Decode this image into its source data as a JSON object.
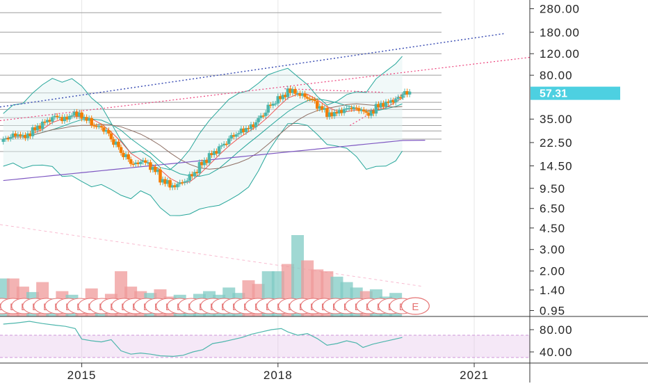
{
  "chart_data": [
    {
      "type": "candlestick",
      "scale": "log",
      "x_ticks": [
        "2015",
        "2018",
        "2021"
      ],
      "y_ticks": [
        "280.00",
        "180.00",
        "120.00",
        "80.00",
        "35.00",
        "22.50",
        "14.50",
        "9.50",
        "6.50",
        "4.50",
        "3.00",
        "2.00",
        "1.40",
        "0.95"
      ],
      "ylim": [
        0.85,
        330
      ],
      "xlim": [
        2013.75,
        2021.85
      ],
      "last_price": "57.31",
      "last_price_color": "#4dd0e1",
      "up_color": "#4db6ac",
      "down_color": "#f57c00",
      "weekly_closes": [
        {
          "t": 2013.8,
          "v": 24
        },
        {
          "t": 2013.95,
          "v": 26
        },
        {
          "t": 2014.1,
          "v": 25
        },
        {
          "t": 2014.25,
          "v": 29
        },
        {
          "t": 2014.4,
          "v": 33
        },
        {
          "t": 2014.55,
          "v": 37
        },
        {
          "t": 2014.7,
          "v": 35
        },
        {
          "t": 2014.85,
          "v": 39
        },
        {
          "t": 2015.0,
          "v": 36
        },
        {
          "t": 2015.15,
          "v": 31
        },
        {
          "t": 2015.3,
          "v": 29
        },
        {
          "t": 2015.45,
          "v": 23
        },
        {
          "t": 2015.6,
          "v": 18
        },
        {
          "t": 2015.75,
          "v": 15
        },
        {
          "t": 2015.9,
          "v": 16
        },
        {
          "t": 2016.05,
          "v": 14
        },
        {
          "t": 2016.2,
          "v": 11
        },
        {
          "t": 2016.35,
          "v": 9.8
        },
        {
          "t": 2016.5,
          "v": 10.5
        },
        {
          "t": 2016.65,
          "v": 12
        },
        {
          "t": 2016.8,
          "v": 15
        },
        {
          "t": 2016.95,
          "v": 18
        },
        {
          "t": 2017.1,
          "v": 21
        },
        {
          "t": 2017.25,
          "v": 25
        },
        {
          "t": 2017.4,
          "v": 28
        },
        {
          "t": 2017.55,
          "v": 30
        },
        {
          "t": 2017.7,
          "v": 36
        },
        {
          "t": 2017.85,
          "v": 45
        },
        {
          "t": 2018.0,
          "v": 52
        },
        {
          "t": 2018.15,
          "v": 60
        },
        {
          "t": 2018.3,
          "v": 56
        },
        {
          "t": 2018.45,
          "v": 52
        },
        {
          "t": 2018.6,
          "v": 44
        },
        {
          "t": 2018.75,
          "v": 38
        },
        {
          "t": 2018.9,
          "v": 40
        },
        {
          "t": 2019.05,
          "v": 43
        },
        {
          "t": 2019.2,
          "v": 42
        },
        {
          "t": 2019.35,
          "v": 38
        },
        {
          "t": 2019.5,
          "v": 45
        },
        {
          "t": 2019.65,
          "v": 48
        },
        {
          "t": 2019.8,
          "v": 52
        },
        {
          "t": 2019.9,
          "v": 57.31
        }
      ],
      "volume": [
        {
          "t": 2013.8,
          "v": 0.42,
          "dir": "up"
        },
        {
          "t": 2013.95,
          "v": 0.42,
          "dir": "down"
        },
        {
          "t": 2014.1,
          "v": 0.33,
          "dir": "down"
        },
        {
          "t": 2014.25,
          "v": 0.27,
          "dir": "up"
        },
        {
          "t": 2014.4,
          "v": 0.38,
          "dir": "down"
        },
        {
          "t": 2014.55,
          "v": 0.2,
          "dir": "up"
        },
        {
          "t": 2014.7,
          "v": 0.28,
          "dir": "down"
        },
        {
          "t": 2014.85,
          "v": 0.24,
          "dir": "up"
        },
        {
          "t": 2015.0,
          "v": 0.2,
          "dir": "down"
        },
        {
          "t": 2015.15,
          "v": 0.31,
          "dir": "down"
        },
        {
          "t": 2015.3,
          "v": 0.18,
          "dir": "up"
        },
        {
          "t": 2015.45,
          "v": 0.25,
          "dir": "down"
        },
        {
          "t": 2015.6,
          "v": 0.5,
          "dir": "down"
        },
        {
          "t": 2015.75,
          "v": 0.33,
          "dir": "down"
        },
        {
          "t": 2015.9,
          "v": 0.28,
          "dir": "down"
        },
        {
          "t": 2016.05,
          "v": 0.26,
          "dir": "up"
        },
        {
          "t": 2016.2,
          "v": 0.3,
          "dir": "down"
        },
        {
          "t": 2016.35,
          "v": 0.22,
          "dir": "down"
        },
        {
          "t": 2016.5,
          "v": 0.24,
          "dir": "up"
        },
        {
          "t": 2016.65,
          "v": 0.2,
          "dir": "up"
        },
        {
          "t": 2016.8,
          "v": 0.25,
          "dir": "up"
        },
        {
          "t": 2016.95,
          "v": 0.28,
          "dir": "up"
        },
        {
          "t": 2017.1,
          "v": 0.24,
          "dir": "up"
        },
        {
          "t": 2017.25,
          "v": 0.32,
          "dir": "up"
        },
        {
          "t": 2017.4,
          "v": 0.26,
          "dir": "up"
        },
        {
          "t": 2017.55,
          "v": 0.4,
          "dir": "down"
        },
        {
          "t": 2017.7,
          "v": 0.36,
          "dir": "down"
        },
        {
          "t": 2017.85,
          "v": 0.5,
          "dir": "up"
        },
        {
          "t": 2018.0,
          "v": 0.5,
          "dir": "up"
        },
        {
          "t": 2018.15,
          "v": 0.58,
          "dir": "down"
        },
        {
          "t": 2018.3,
          "v": 0.9,
          "dir": "up"
        },
        {
          "t": 2018.45,
          "v": 0.62,
          "dir": "down"
        },
        {
          "t": 2018.6,
          "v": 0.52,
          "dir": "down"
        },
        {
          "t": 2018.75,
          "v": 0.5,
          "dir": "down"
        },
        {
          "t": 2018.9,
          "v": 0.44,
          "dir": "up"
        },
        {
          "t": 2019.05,
          "v": 0.38,
          "dir": "up"
        },
        {
          "t": 2019.2,
          "v": 0.32,
          "dir": "up"
        },
        {
          "t": 2019.35,
          "v": 0.28,
          "dir": "down"
        },
        {
          "t": 2019.5,
          "v": 0.3,
          "dir": "up"
        },
        {
          "t": 2019.65,
          "v": 0.22,
          "dir": "up"
        },
        {
          "t": 2019.8,
          "v": 0.26,
          "dir": "up"
        }
      ],
      "earnings_markers": [
        2013.78,
        2013.95,
        2014.12,
        2014.29,
        2014.46,
        2014.63,
        2014.8,
        2014.97,
        2015.14,
        2015.31,
        2015.48,
        2015.65,
        2015.82,
        2015.99,
        2016.16,
        2016.33,
        2016.5,
        2016.67,
        2016.84,
        2017.01,
        2017.18,
        2017.35,
        2017.52,
        2017.69,
        2017.86,
        2018.03,
        2018.2,
        2018.37,
        2018.54,
        2018.71,
        2018.88,
        2019.05,
        2019.22,
        2019.39,
        2019.56,
        2019.73,
        2019.9
      ],
      "earnings_label": "E",
      "next_earnings": 2020.1
    },
    {
      "type": "line",
      "y_ticks": [
        "80.00",
        "40.00"
      ],
      "ylim": [
        20,
        100
      ],
      "band": [
        30,
        70
      ],
      "band_color": "#e1bee7",
      "series": [
        {
          "color": "#4db6ac",
          "points": [
            {
              "t": 2013.8,
              "v": 90
            },
            {
              "t": 2014.0,
              "v": 92
            },
            {
              "t": 2014.2,
              "v": 95
            },
            {
              "t": 2014.4,
              "v": 91
            },
            {
              "t": 2014.6,
              "v": 88
            },
            {
              "t": 2014.75,
              "v": 86
            },
            {
              "t": 2014.9,
              "v": 82
            },
            {
              "t": 2015.0,
              "v": 63
            },
            {
              "t": 2015.15,
              "v": 60
            },
            {
              "t": 2015.3,
              "v": 58
            },
            {
              "t": 2015.45,
              "v": 62
            },
            {
              "t": 2015.6,
              "v": 42
            },
            {
              "t": 2015.75,
              "v": 36
            },
            {
              "t": 2015.9,
              "v": 38
            },
            {
              "t": 2016.05,
              "v": 36
            },
            {
              "t": 2016.2,
              "v": 33
            },
            {
              "t": 2016.4,
              "v": 32
            },
            {
              "t": 2016.55,
              "v": 34
            },
            {
              "t": 2016.7,
              "v": 40
            },
            {
              "t": 2016.85,
              "v": 44
            },
            {
              "t": 2017.0,
              "v": 55
            },
            {
              "t": 2017.15,
              "v": 58
            },
            {
              "t": 2017.3,
              "v": 62
            },
            {
              "t": 2017.45,
              "v": 66
            },
            {
              "t": 2017.6,
              "v": 72
            },
            {
              "t": 2017.75,
              "v": 76
            },
            {
              "t": 2017.9,
              "v": 80
            },
            {
              "t": 2018.05,
              "v": 82
            },
            {
              "t": 2018.15,
              "v": 76
            },
            {
              "t": 2018.3,
              "v": 70
            },
            {
              "t": 2018.45,
              "v": 73
            },
            {
              "t": 2018.6,
              "v": 64
            },
            {
              "t": 2018.75,
              "v": 52
            },
            {
              "t": 2018.9,
              "v": 55
            },
            {
              "t": 2019.05,
              "v": 60
            },
            {
              "t": 2019.2,
              "v": 56
            },
            {
              "t": 2019.3,
              "v": 48
            },
            {
              "t": 2019.45,
              "v": 54
            },
            {
              "t": 2019.6,
              "v": 58
            },
            {
              "t": 2019.75,
              "v": 62
            },
            {
              "t": 2019.9,
              "v": 66
            }
          ]
        }
      ]
    }
  ]
}
